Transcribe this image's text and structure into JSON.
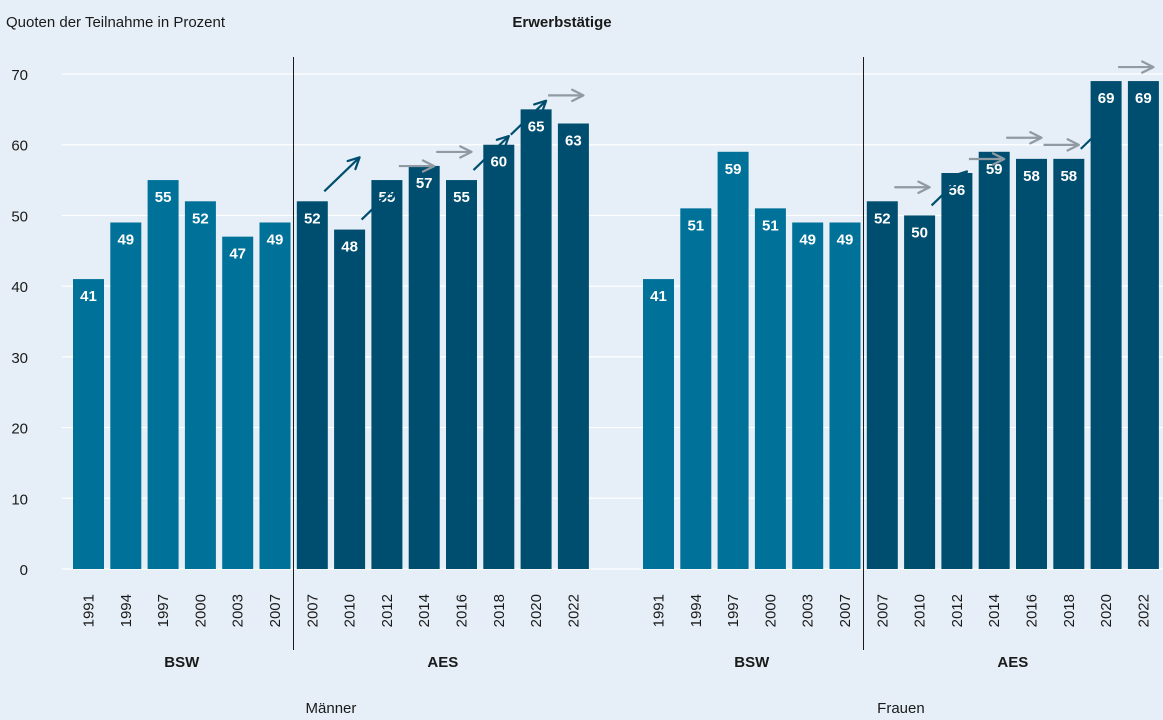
{
  "chart_data": {
    "type": "bar",
    "title": "Erwerbstätige",
    "ylabel": "Quoten der Teilnahme in Prozent",
    "ylim": [
      0,
      70
    ],
    "yticks": [
      0,
      10,
      20,
      30,
      40,
      50,
      60,
      70
    ],
    "grid": true,
    "colors": {
      "background": "#e6eff7",
      "BSW": "#00729a",
      "AES": "#004e6f",
      "trend_arrow": "#004e6f",
      "stable_arrow": "#8f9aa3",
      "grid": "#ffffff",
      "text": "#1a1a1a",
      "label": "#ffffff"
    },
    "panels": [
      {
        "name": "Männer",
        "groups": [
          {
            "name": "BSW",
            "categories": [
              "1991",
              "1994",
              "1997",
              "2000",
              "2003",
              "2007"
            ],
            "values": [
              41,
              49,
              55,
              52,
              47,
              49
            ]
          },
          {
            "name": "AES",
            "categories": [
              "2007",
              "2010",
              "2012",
              "2014",
              "2016",
              "2018",
              "2020",
              "2022"
            ],
            "values": [
              52,
              48,
              55,
              57,
              55,
              60,
              65,
              63
            ]
          }
        ],
        "trend_arrows": [
          {
            "between": [
              0,
              1
            ],
            "direction": "up"
          },
          {
            "between": [
              1,
              2
            ],
            "direction": "up"
          },
          {
            "between": [
              2,
              3
            ],
            "direction": "flat"
          },
          {
            "between": [
              3,
              4
            ],
            "direction": "flat"
          },
          {
            "between": [
              4,
              5
            ],
            "direction": "up"
          },
          {
            "between": [
              5,
              6
            ],
            "direction": "up"
          },
          {
            "between": [
              6,
              7
            ],
            "direction": "flat"
          }
        ]
      },
      {
        "name": "Frauen",
        "groups": [
          {
            "name": "BSW",
            "categories": [
              "1991",
              "1994",
              "1997",
              "2000",
              "2003",
              "2007"
            ],
            "values": [
              41,
              51,
              59,
              51,
              49,
              49
            ]
          },
          {
            "name": "AES",
            "categories": [
              "2007",
              "2010",
              "2012",
              "2014",
              "2016",
              "2018",
              "2020",
              "2022"
            ],
            "values": [
              52,
              50,
              56,
              59,
              58,
              58,
              69,
              69
            ]
          }
        ],
        "trend_arrows": [
          {
            "between": [
              0,
              1
            ],
            "direction": "flat"
          },
          {
            "between": [
              1,
              2
            ],
            "direction": "up"
          },
          {
            "between": [
              2,
              3
            ],
            "direction": "flat"
          },
          {
            "between": [
              3,
              4
            ],
            "direction": "flat"
          },
          {
            "between": [
              4,
              5
            ],
            "direction": "flat"
          },
          {
            "between": [
              5,
              6
            ],
            "direction": "up"
          },
          {
            "between": [
              6,
              7
            ],
            "direction": "flat"
          }
        ]
      }
    ]
  }
}
